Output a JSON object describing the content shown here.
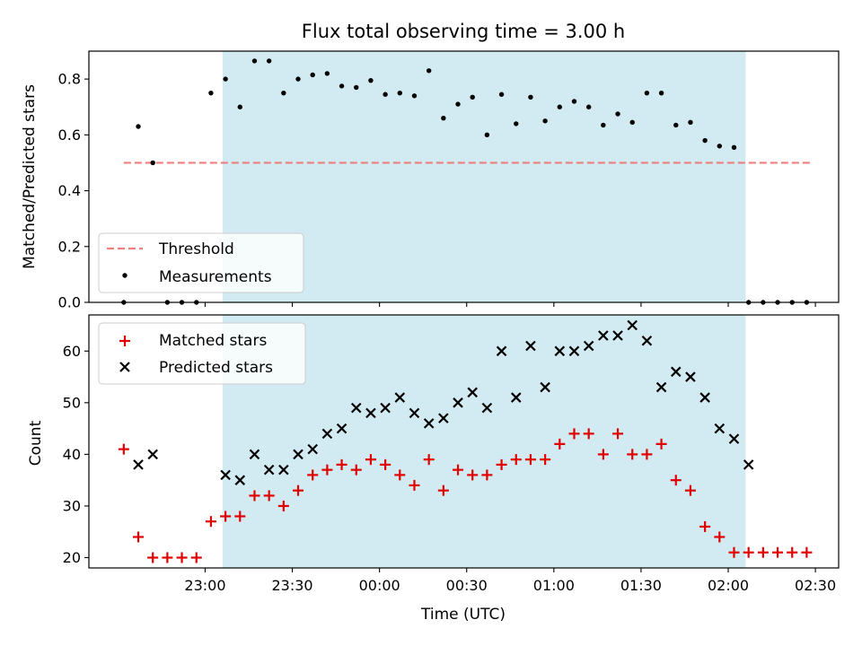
{
  "title": "Flux total observing time = 3.00 h",
  "xlabel": "Time (UTC)",
  "x_ticks": [
    "23:00",
    "23:30",
    "00:00",
    "00:30",
    "01:00",
    "01:30",
    "02:00",
    "02:30"
  ],
  "colors": {
    "threshold": "#f07f7f",
    "measurement": "#000000",
    "matched": "#e00000",
    "predicted": "#000000",
    "span": "#add8e6"
  },
  "chart_data": [
    {
      "type": "scatter",
      "ylabel": "Matched/Predicted stars",
      "ylim": [
        0,
        0.9
      ],
      "y_ticks": [
        "0.0",
        "0.2",
        "0.4",
        "0.6",
        "0.8"
      ],
      "xlim": [
        "22:20",
        "02:38"
      ],
      "highlight_span": [
        "23:06",
        "02:06"
      ],
      "legend": {
        "placement": "lower-left",
        "entries": [
          "Threshold",
          "Measurements"
        ]
      },
      "threshold": {
        "name": "Threshold",
        "y": 0.5,
        "x_range": [
          "22:32",
          "02:29"
        ]
      },
      "series": [
        {
          "name": "Measurements",
          "x": [
            "22:32",
            "22:37",
            "22:42",
            "22:47",
            "22:52",
            "22:57",
            "23:02",
            "23:07",
            "23:12",
            "23:17",
            "23:22",
            "23:27",
            "23:32",
            "23:37",
            "23:42",
            "23:47",
            "23:52",
            "23:57",
            "00:02",
            "00:07",
            "00:12",
            "00:17",
            "00:22",
            "00:27",
            "00:32",
            "00:37",
            "00:42",
            "00:47",
            "00:52",
            "00:57",
            "01:02",
            "01:07",
            "01:12",
            "01:17",
            "01:22",
            "01:27",
            "01:32",
            "01:37",
            "01:42",
            "01:47",
            "01:52",
            "01:57",
            "02:02",
            "02:07",
            "02:12",
            "02:17",
            "02:22",
            "02:27"
          ],
          "y": [
            0.0,
            0.63,
            0.5,
            0.0,
            0.0,
            0.0,
            0.75,
            0.8,
            0.7,
            0.865,
            0.865,
            0.75,
            0.8,
            0.815,
            0.82,
            0.775,
            0.77,
            0.795,
            0.745,
            0.75,
            0.74,
            0.83,
            0.66,
            0.71,
            0.735,
            0.6,
            0.745,
            0.64,
            0.735,
            0.65,
            0.7,
            0.72,
            0.7,
            0.635,
            0.675,
            0.645,
            0.75,
            0.75,
            0.635,
            0.645,
            0.58,
            0.56,
            0.555,
            0.0,
            0.0,
            0.0,
            0.0,
            0.0
          ]
        }
      ]
    },
    {
      "type": "scatter",
      "ylabel": "Count",
      "ylim": [
        18,
        67
      ],
      "y_ticks": [
        "20",
        "30",
        "40",
        "50",
        "60"
      ],
      "xlim": [
        "22:20",
        "02:38"
      ],
      "highlight_span": [
        "23:06",
        "02:06"
      ],
      "legend": {
        "placement": "upper-left",
        "entries": [
          "Matched stars",
          "Predicted stars"
        ]
      },
      "series": [
        {
          "name": "Matched stars",
          "marker": "plus",
          "x": [
            "22:32",
            "22:37",
            "22:42",
            "22:47",
            "22:52",
            "22:57",
            "23:02",
            "23:07",
            "23:12",
            "23:17",
            "23:22",
            "23:27",
            "23:32",
            "23:37",
            "23:42",
            "23:47",
            "23:52",
            "23:57",
            "00:02",
            "00:07",
            "00:12",
            "00:17",
            "00:22",
            "00:27",
            "00:32",
            "00:37",
            "00:42",
            "00:47",
            "00:52",
            "00:57",
            "01:02",
            "01:07",
            "01:12",
            "01:17",
            "01:22",
            "01:27",
            "01:32",
            "01:37",
            "01:42",
            "01:47",
            "01:52",
            "01:57",
            "02:02",
            "02:07",
            "02:12",
            "02:17",
            "02:22",
            "02:27"
          ],
          "y": [
            41,
            24,
            20,
            20,
            20,
            20,
            27,
            28,
            28,
            32,
            32,
            30,
            33,
            36,
            37,
            38,
            37,
            39,
            38,
            36,
            34,
            39,
            33,
            37,
            36,
            36,
            38,
            39,
            39,
            39,
            42,
            44,
            44,
            40,
            44,
            40,
            40,
            42,
            35,
            33,
            26,
            24,
            21,
            21,
            21,
            21,
            21,
            21
          ]
        },
        {
          "name": "Predicted stars",
          "marker": "x",
          "x": [
            "22:37",
            "22:42",
            "23:07",
            "23:12",
            "23:17",
            "23:22",
            "23:27",
            "23:32",
            "23:37",
            "23:42",
            "23:47",
            "23:52",
            "23:57",
            "00:02",
            "00:07",
            "00:12",
            "00:17",
            "00:22",
            "00:27",
            "00:32",
            "00:37",
            "00:42",
            "00:47",
            "00:52",
            "00:57",
            "01:02",
            "01:07",
            "01:12",
            "01:17",
            "01:22",
            "01:27",
            "01:32",
            "01:37",
            "01:42",
            "01:47",
            "01:52",
            "01:57",
            "02:02",
            "02:07"
          ],
          "y": [
            38,
            40,
            36,
            35,
            40,
            37,
            37,
            40,
            41,
            44,
            45,
            49,
            48,
            49,
            51,
            48,
            46,
            47,
            50,
            52,
            49,
            60,
            51,
            61,
            53,
            60,
            60,
            61,
            63,
            63,
            65,
            62,
            53,
            56,
            55,
            51,
            45,
            43,
            38
          ]
        }
      ]
    }
  ]
}
